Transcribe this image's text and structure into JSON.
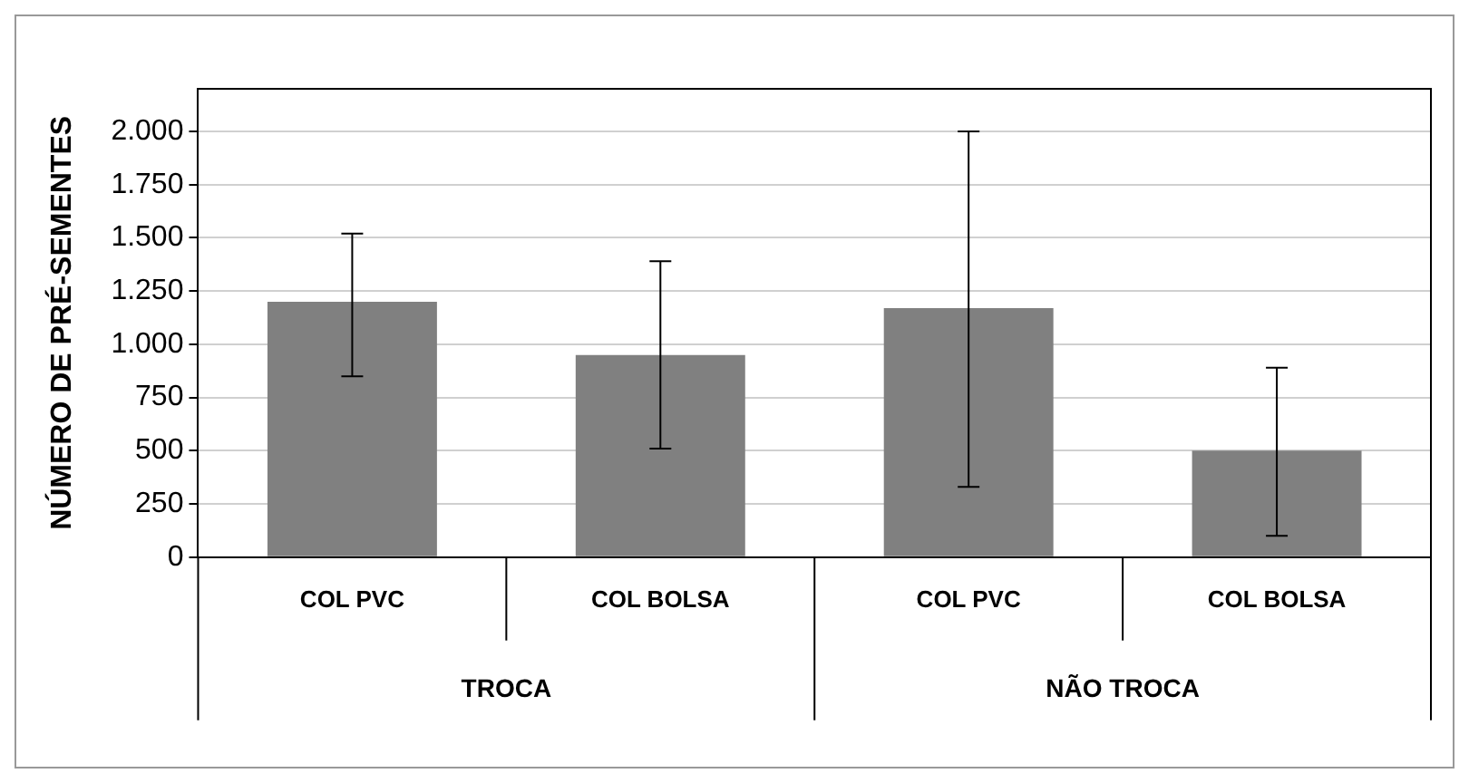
{
  "chart_data": {
    "type": "bar",
    "ylabel": "NÚMERO DE PRÉ-SEMENTES",
    "categories": [
      "COL PVC",
      "COL BOLSA",
      "COL PVC",
      "COL BOLSA"
    ],
    "annotations": [
      "TROCA",
      "NÃO TROCA"
    ],
    "series": [
      {
        "color": "#808080",
        "values": [
          1200,
          950,
          1170,
          500
        ],
        "errors": [
          [
            850,
            1520
          ],
          [
            510,
            1390
          ],
          [
            330,
            2000
          ],
          [
            100,
            890
          ]
        ]
      }
    ],
    "ylim": [
      0,
      2200
    ],
    "yticks": [
      {
        "value": 0,
        "label": "0"
      },
      {
        "value": 250,
        "label": "250"
      },
      {
        "value": 500,
        "label": "500"
      },
      {
        "value": 750,
        "label": "750"
      },
      {
        "value": 1000,
        "label": "1.000"
      },
      {
        "value": 1250,
        "label": "1.250"
      },
      {
        "value": 1500,
        "label": "1.500"
      },
      {
        "value": 1750,
        "label": "1.750"
      },
      {
        "value": 2000,
        "label": "2.000"
      }
    ],
    "grid": "y",
    "legend": false
  }
}
